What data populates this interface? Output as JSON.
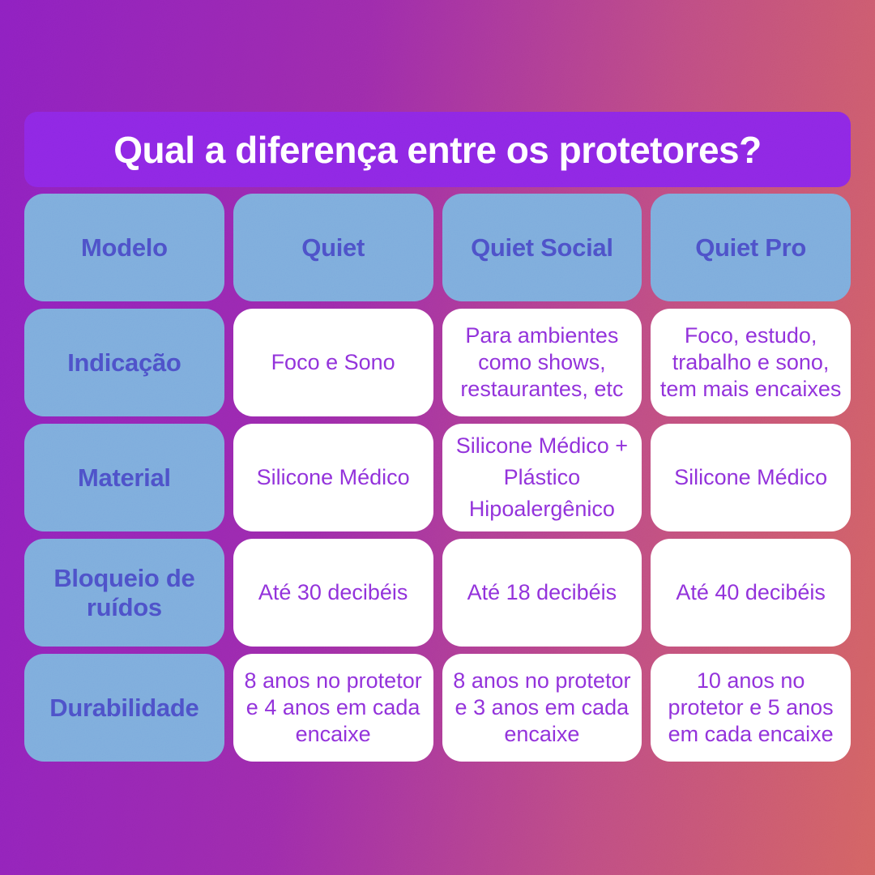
{
  "banner": {
    "title": "Qual a diferença entre os protetores?"
  },
  "colors": {
    "background_gradient_start": "#8a1fbe",
    "background_gradient_end": "#d2605f",
    "banner_background": "#8a26e3",
    "banner_text": "#ffffff",
    "header_cell_background": "#79a9db",
    "header_cell_text": "#4a4ec6",
    "body_cell_background": "#ffffff",
    "body_cell_text": "#8c2fd9"
  },
  "chart_data": {
    "type": "table",
    "title": "Qual a diferença entre os protetores?",
    "columns": [
      "Modelo",
      "Quiet",
      "Quiet Social",
      "Quiet Pro"
    ],
    "rows": [
      {
        "label": "Indicação",
        "values": [
          "Foco e Sono",
          "Para ambientes como shows, restaurantes, etc",
          "Foco, estudo, trabalho e sono, tem mais encaixes"
        ]
      },
      {
        "label": "Material",
        "values": [
          "Silicone Médico",
          "Silicone Médico + Plástico Hipoalergênico",
          "Silicone Médico"
        ]
      },
      {
        "label": "Bloqueio de ruídos",
        "values": [
          "Até 30 decibéis",
          "Até 18 decibéis",
          "Até 40 decibéis"
        ]
      },
      {
        "label": "Durabilidade",
        "values": [
          "8 anos no protetor e 4 anos em cada encaixe",
          "8 anos no protetor e 3 anos em cada encaixe",
          "10 anos no protetor e 5 anos em cada encaixe"
        ]
      }
    ]
  }
}
